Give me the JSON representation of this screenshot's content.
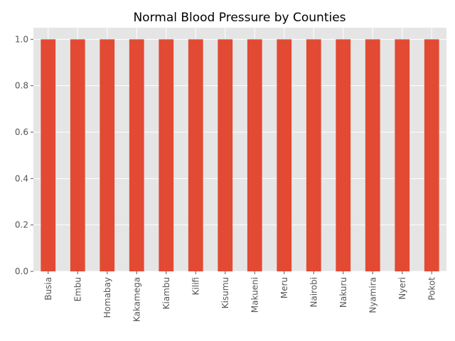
{
  "chart_data": {
    "type": "bar",
    "title": "Normal Blood Pressure by Counties",
    "xlabel": "",
    "ylabel": "",
    "categories": [
      "Busia",
      "Embu",
      "Homabay",
      "Kakamega",
      "Kiambu",
      "Kilifi",
      "Kisumu",
      "Makueni",
      "Meru",
      "Nairobi",
      "Nakuru",
      "Nyamira",
      "Nyeri",
      "Pokot"
    ],
    "values": [
      1,
      1,
      1,
      1,
      1,
      1,
      1,
      1,
      1,
      1,
      1,
      1,
      1,
      1
    ],
    "ylim": [
      0,
      1.05
    ],
    "yticks": [
      "0.0",
      "0.2",
      "0.4",
      "0.6",
      "0.8",
      "1.0"
    ],
    "grid": true,
    "bar_color": "#E24A33",
    "background_color": "#E5E5E5",
    "grid_color": "#FFFFFF"
  }
}
